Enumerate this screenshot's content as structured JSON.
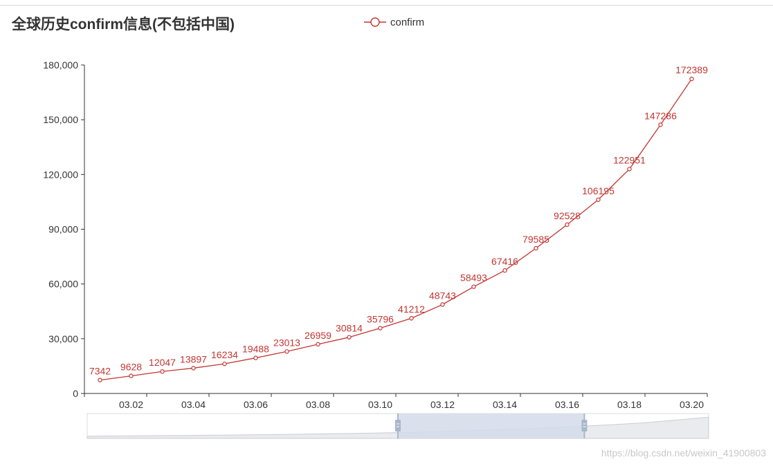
{
  "chart_data": {
    "type": "line",
    "title": "全球历史confirm信息(不包括中国)",
    "legend": {
      "entries": [
        "confirm"
      ],
      "placement": "top-center"
    },
    "x": [
      "03.01",
      "03.02",
      "03.03",
      "03.04",
      "03.05",
      "03.06",
      "03.07",
      "03.08",
      "03.09",
      "03.10",
      "03.11",
      "03.12",
      "03.13",
      "03.14",
      "03.15",
      "03.16",
      "03.17",
      "03.18",
      "03.19",
      "03.20"
    ],
    "x_tick_labels": [
      "03.02",
      "03.04",
      "03.06",
      "03.08",
      "03.10",
      "03.12",
      "03.14",
      "03.16",
      "03.18",
      "03.20"
    ],
    "series": [
      {
        "name": "confirm",
        "values": [
          7342,
          9628,
          12047,
          13897,
          16234,
          19488,
          23013,
          26959,
          30814,
          35796,
          41212,
          48743,
          58493,
          67416,
          79585,
          92528,
          106195,
          122951,
          147286,
          172389
        ]
      }
    ],
    "y_tick_labels": [
      "0",
      "30,000",
      "60,000",
      "90,000",
      "120,000",
      "150,000",
      "180,000"
    ],
    "ylim": [
      0,
      180000
    ],
    "grid": false,
    "colors": {
      "series": "#c23531",
      "axis": "#333333",
      "zoom_fill": "#d3dcea",
      "zoom_handle": "#a7b7cc"
    },
    "data_zoom": {
      "start_fraction": 0.5,
      "end_fraction": 0.8
    }
  },
  "watermark": "https://blog.csdn.net/weixin_41900803"
}
